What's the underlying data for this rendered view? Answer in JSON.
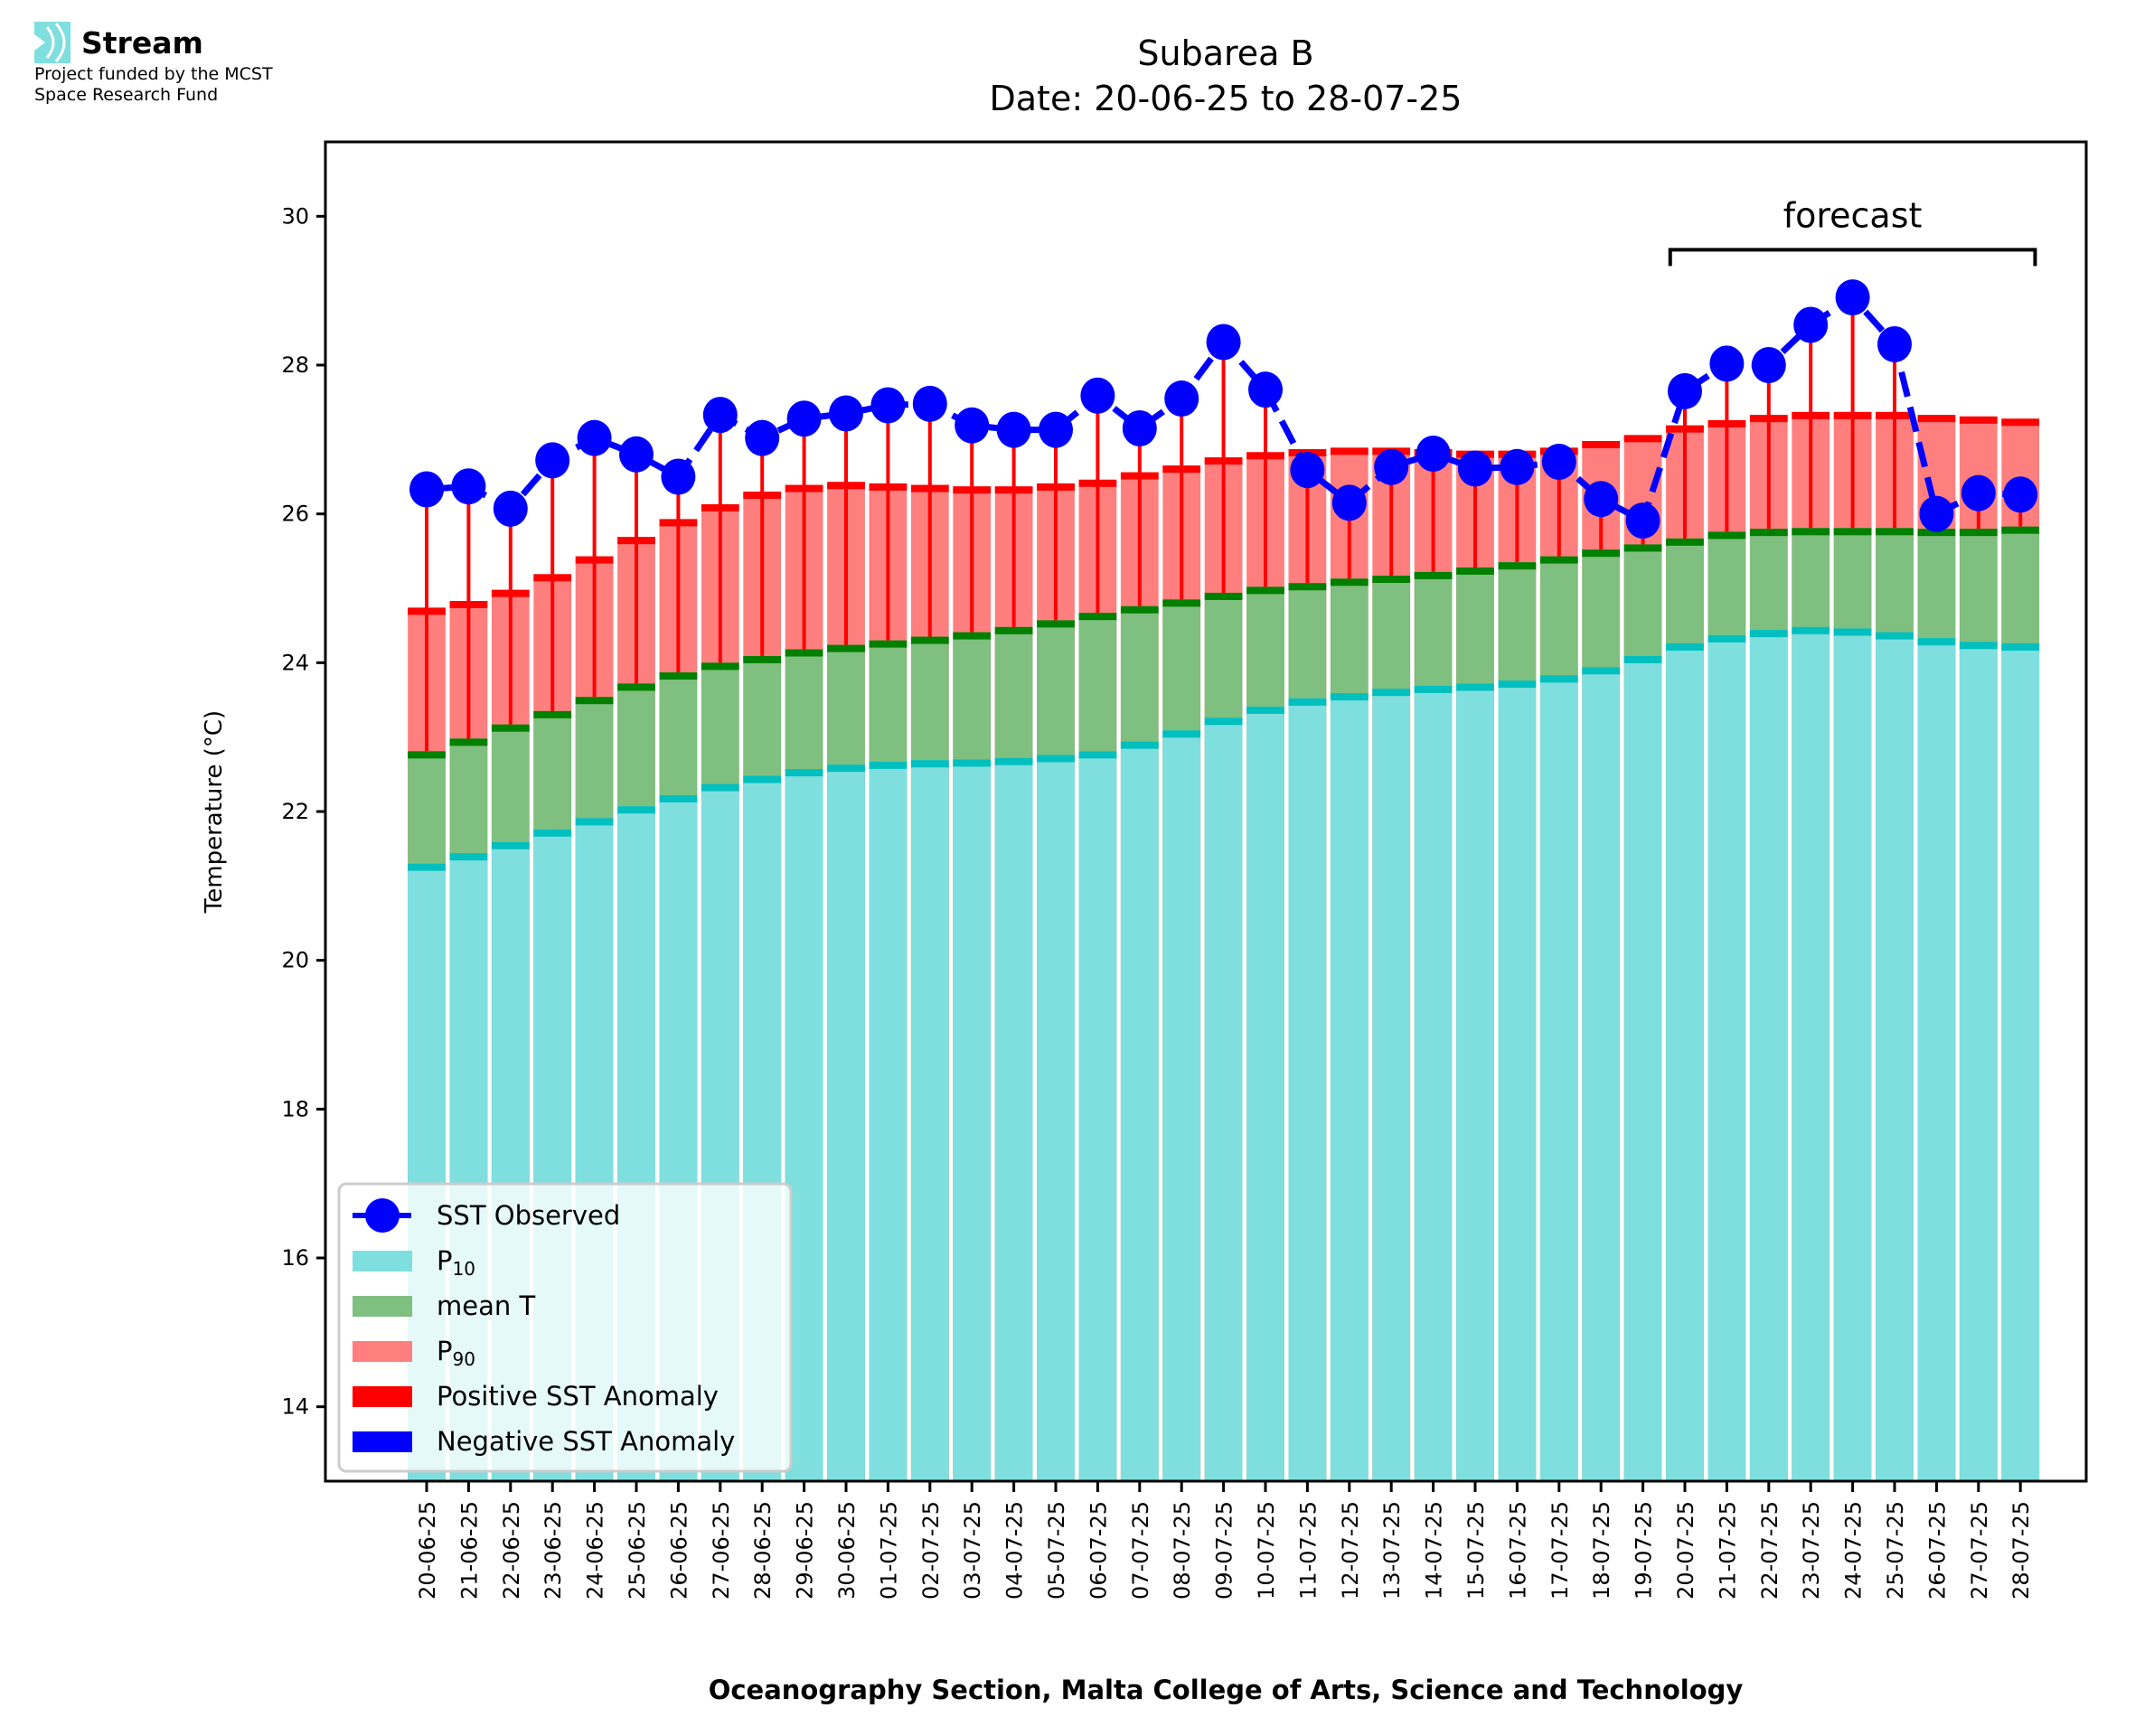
{
  "logo": {
    "name": "Stream",
    "funding_line_1": "Project funded by the MCST",
    "funding_line_2": "Space Research Fund",
    "icon": "stream-waves-icon",
    "icon_color": "#7fdede"
  },
  "chart_data": {
    "type": "bar",
    "title": "Subarea B",
    "subtitle": "Date: 20-06-25 to 28-07-25",
    "xlabel": "Oceanography Section, Malta College of Arts, Science and Technology",
    "ylabel": "Temperature (°C)",
    "ylim": [
      13,
      31
    ],
    "yticks": [
      14,
      16,
      18,
      20,
      22,
      24,
      26,
      28,
      30
    ],
    "grid": false,
    "legend_position": "lower-left",
    "annotation": {
      "text": "forecast",
      "from": "20-07-25",
      "to": "28-07-25"
    },
    "categories": [
      "20-06-25",
      "21-06-25",
      "22-06-25",
      "23-06-25",
      "24-06-25",
      "25-06-25",
      "26-06-25",
      "27-06-25",
      "28-06-25",
      "29-06-25",
      "30-06-25",
      "01-07-25",
      "02-07-25",
      "03-07-25",
      "04-07-25",
      "05-07-25",
      "06-07-25",
      "07-07-25",
      "08-07-25",
      "09-07-25",
      "10-07-25",
      "11-07-25",
      "12-07-25",
      "13-07-25",
      "14-07-25",
      "15-07-25",
      "16-07-25",
      "17-07-25",
      "18-07-25",
      "19-07-25",
      "20-07-25",
      "21-07-25",
      "22-07-25",
      "23-07-25",
      "24-07-25",
      "25-07-25",
      "26-07-25",
      "27-07-25",
      "28-07-25"
    ],
    "series": [
      {
        "name": "P10",
        "label_main": "P",
        "label_sub": "10",
        "color": "#7fdfdf",
        "edge_color": "#00bfbf",
        "values": [
          21.3,
          21.44,
          21.59,
          21.76,
          21.91,
          22.07,
          22.22,
          22.37,
          22.48,
          22.57,
          22.63,
          22.67,
          22.69,
          22.7,
          22.72,
          22.76,
          22.81,
          22.94,
          23.09,
          23.26,
          23.41,
          23.52,
          23.59,
          23.65,
          23.69,
          23.72,
          23.76,
          23.83,
          23.94,
          24.09,
          24.26,
          24.37,
          24.44,
          24.48,
          24.46,
          24.41,
          24.33,
          24.28,
          24.26
        ]
      },
      {
        "name": "mean T",
        "label_main": "mean T",
        "label_sub": "",
        "color": "#7fbf7f",
        "edge_color": "#008000",
        "values": [
          22.81,
          22.98,
          23.17,
          23.35,
          23.54,
          23.72,
          23.87,
          24.0,
          24.09,
          24.18,
          24.24,
          24.3,
          24.35,
          24.41,
          24.48,
          24.57,
          24.67,
          24.76,
          24.85,
          24.94,
          25.02,
          25.07,
          25.13,
          25.17,
          25.22,
          25.28,
          25.35,
          25.43,
          25.52,
          25.59,
          25.67,
          25.76,
          25.8,
          25.81,
          25.81,
          25.81,
          25.8,
          25.8,
          25.83
        ]
      },
      {
        "name": "P90",
        "label_main": "P",
        "label_sub": "90",
        "color": "#ff7f7f",
        "edge_color": "#ff0000",
        "values": [
          24.74,
          24.83,
          24.98,
          25.19,
          25.43,
          25.69,
          25.93,
          26.13,
          26.3,
          26.39,
          26.43,
          26.41,
          26.39,
          26.37,
          26.37,
          26.41,
          26.46,
          26.56,
          26.65,
          26.76,
          26.83,
          26.87,
          26.89,
          26.89,
          26.87,
          26.85,
          26.85,
          26.89,
          26.98,
          27.06,
          27.19,
          27.26,
          27.33,
          27.37,
          27.37,
          27.37,
          27.33,
          27.31,
          27.28
        ]
      },
      {
        "name": "SST Observed",
        "type": "line",
        "color": "#0000ff",
        "linestyle": "dashed",
        "marker": "circle",
        "values": [
          26.33,
          26.37,
          26.07,
          26.72,
          27.02,
          26.8,
          26.5,
          27.33,
          27.02,
          27.28,
          27.35,
          27.46,
          27.48,
          27.19,
          27.13,
          27.13,
          27.59,
          27.15,
          27.55,
          28.31,
          27.67,
          26.59,
          26.15,
          26.63,
          26.81,
          26.61,
          26.63,
          26.7,
          26.2,
          25.91,
          27.65,
          28.02,
          28.0,
          28.54,
          28.91,
          28.28,
          26.0,
          26.28,
          26.26
        ]
      }
    ],
    "legend": [
      {
        "label": "SST Observed",
        "sub": "",
        "kind": "line-marker",
        "color": "#0000ff"
      },
      {
        "label": "P",
        "sub": "10",
        "kind": "patch",
        "color": "#7fdfdf"
      },
      {
        "label": "mean T",
        "sub": "",
        "kind": "patch",
        "color": "#7fbf7f"
      },
      {
        "label": "P",
        "sub": "90",
        "kind": "patch",
        "color": "#ff7f7f"
      },
      {
        "label": "Positive SST Anomaly",
        "sub": "",
        "kind": "patch",
        "color": "#ff0000"
      },
      {
        "label": "Negative SST Anomaly",
        "sub": "",
        "kind": "patch",
        "color": "#0000ff"
      }
    ],
    "anomaly_colors": {
      "positive": "#ff0000",
      "negative": "#0000ff"
    }
  }
}
